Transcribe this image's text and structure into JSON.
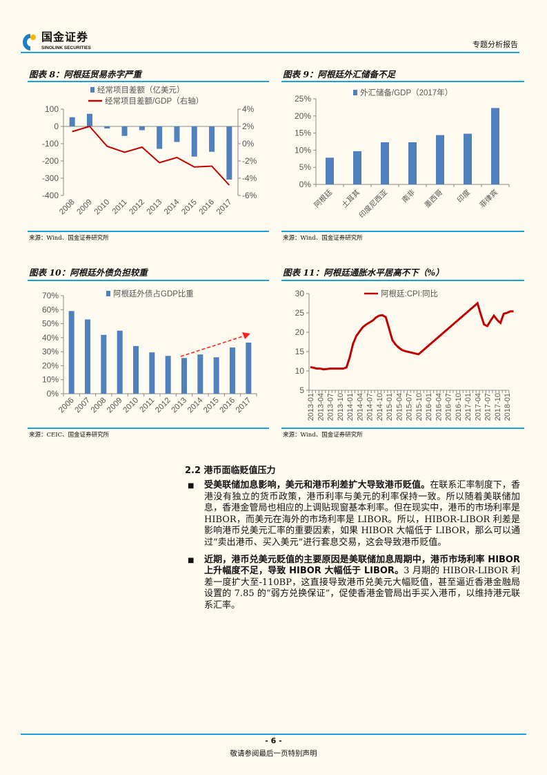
{
  "header": {
    "logo_cn": "国金证券",
    "logo_en": "SINOLINK SECURITIES",
    "report_type": "专题分析报告",
    "accent": "#1aa0dc"
  },
  "figures": [
    {
      "title": "图表 8：阿根廷贸易赤字严重",
      "source": "来源：Wind、国金证券研究所"
    },
    {
      "title": "图表 9：阿根廷外汇储备不足",
      "source": "来源：Wind、国金证券研究所"
    },
    {
      "title": "图表 10：阿根廷外债负担较重",
      "source": "来源：CEIC、国金证券研究所"
    },
    {
      "title": "图表 11：阿根廷通胀水平居高不下（%）",
      "source": "来源：Wind、国金证券研究所"
    }
  ],
  "chart_data": [
    {
      "type": "bar+line",
      "categories": [
        "2008",
        "2009",
        "2010",
        "2011",
        "2012",
        "2013",
        "2014",
        "2015",
        "2016",
        "2017"
      ],
      "series": [
        {
          "name": "经常项目差额（亿美元）",
          "kind": "bar",
          "axis": "left",
          "color": "#4f81bd",
          "values": [
            53,
            73,
            -12,
            -55,
            -22,
            -130,
            -90,
            -175,
            -147,
            -308
          ]
        },
        {
          "name": "经常项目差额/GDP（右轴）",
          "kind": "line",
          "axis": "right",
          "color": "#c00000",
          "values": [
            1.4,
            2.0,
            -0.3,
            -1.0,
            -0.4,
            -2.2,
            -1.6,
            -2.7,
            -2.6,
            -4.8
          ]
        }
      ],
      "ylim": [
        -400,
        100
      ],
      "yticks": [
        "100",
        "0",
        "-100",
        "-200",
        "-300",
        "-400"
      ],
      "y2lim": [
        -6,
        4
      ],
      "y2ticks": [
        "4%",
        "2%",
        "0%",
        "-2%",
        "-4%",
        "-6%"
      ],
      "legend": "top"
    },
    {
      "type": "bar",
      "categories": [
        "阿根廷",
        "土耳其",
        "印度尼西亚",
        "南非",
        "墨西哥",
        "印度",
        "菲律宾"
      ],
      "series": [
        {
          "name": "外汇储备/GDP（2017年）",
          "color": "#4f81bd",
          "values": [
            7.8,
            9.7,
            12.3,
            12.3,
            14.4,
            14.8,
            22.3
          ]
        }
      ],
      "ylim": [
        0,
        25
      ],
      "yticks": [
        "25%",
        "20%",
        "15%",
        "10%",
        "5%",
        "0%"
      ],
      "legend": "top"
    },
    {
      "type": "bar",
      "categories": [
        "2006",
        "2007",
        "2008",
        "2009",
        "2010",
        "2011",
        "2012",
        "2013",
        "2014",
        "2015",
        "2016",
        "2017"
      ],
      "series": [
        {
          "name": "阿根廷外债占GDP比重",
          "color": "#4f81bd",
          "values": [
            59,
            53,
            42,
            45,
            34,
            29.5,
            27,
            25.5,
            28,
            26,
            33,
            36.5
          ]
        }
      ],
      "ylim": [
        0,
        70
      ],
      "yticks": [
        "70%",
        "60%",
        "50%",
        "40%",
        "30%",
        "20%",
        "10%",
        "0%"
      ],
      "annotation": "rising trend arrow 2013→2017",
      "legend": "top"
    },
    {
      "type": "line",
      "series": [
        {
          "name": "阿根廷:CPI:同比",
          "color": "#c00000",
          "points": [
            [
              "2013-01",
              11.0
            ],
            [
              "2013-02",
              10.8
            ],
            [
              "2013-03",
              10.6
            ],
            [
              "2013-04",
              10.6
            ],
            [
              "2013-05",
              10.4
            ],
            [
              "2013-06",
              10.5
            ],
            [
              "2013-07",
              10.6
            ],
            [
              "2013-08",
              10.6
            ],
            [
              "2013-09",
              10.6
            ],
            [
              "2013-10",
              10.6
            ],
            [
              "2013-11",
              10.6
            ],
            [
              "2013-12",
              10.9
            ],
            [
              "2014-01",
              13.5
            ],
            [
              "2014-02",
              17.0
            ],
            [
              "2014-03",
              19.0
            ],
            [
              "2014-04",
              20.2
            ],
            [
              "2014-05",
              21.3
            ],
            [
              "2014-06",
              22.0
            ],
            [
              "2014-07",
              22.5
            ],
            [
              "2014-08",
              23.0
            ],
            [
              "2014-09",
              23.8
            ],
            [
              "2014-10",
              24.3
            ],
            [
              "2014-11",
              24.4
            ],
            [
              "2014-12",
              23.9
            ],
            [
              "2015-01",
              21.0
            ],
            [
              "2015-02",
              18.0
            ],
            [
              "2015-03",
              16.8
            ],
            [
              "2015-04",
              16.0
            ],
            [
              "2015-05",
              15.4
            ],
            [
              "2015-06",
              15.1
            ],
            [
              "2015-07",
              14.9
            ],
            [
              "2015-08",
              14.7
            ],
            [
              "2015-09",
              14.5
            ],
            [
              "2015-10",
              14.3
            ],
            [
              "2017-04",
              27.5
            ],
            [
              "2017-05",
              24.6
            ],
            [
              "2017-06",
              22.0
            ],
            [
              "2017-07",
              21.6
            ],
            [
              "2017-08",
              23.0
            ],
            [
              "2017-09",
              24.3
            ],
            [
              "2017-10",
              23.2
            ],
            [
              "2017-11",
              22.4
            ],
            [
              "2017-12",
              24.8
            ],
            [
              "2018-01",
              25.0
            ],
            [
              "2018-02",
              25.4
            ],
            [
              "2018-03",
              25.4
            ]
          ]
        }
      ],
      "ylim": [
        5,
        30
      ],
      "yticks": [
        "30",
        "25",
        "20",
        "15",
        "10",
        "5"
      ],
      "xticks": [
        "2013-01",
        "2013-04",
        "2013-07",
        "2013-10",
        "2014-01",
        "2014-04",
        "2014-07",
        "2014-10",
        "2015-01",
        "2015-04",
        "2015-07",
        "2015-10",
        "2016-01",
        "2016-04",
        "2016-07",
        "2016-10",
        "2017-01",
        "2017-04",
        "2017-07",
        "2017-10",
        "2018-01"
      ],
      "legend": "top"
    }
  ],
  "section": {
    "title": "2.2 港币面临贬值压力",
    "bullets": [
      {
        "bold": "受美联储加息影响，美元和港币利差扩大导致港币贬值。",
        "text": "在联系汇率制度下，香港没有独立的货币政策，港币利率与美元的利率保持一致。所以随着美联储加息，香港金管局也相应的上调贴现窗基本利率。但在现实中，港币的市场利率是 HIBOR，而美元在海外的市场利率是 LIBOR。所以，HIBOR-LIBOR 利差是影响港币兑美元汇率的重要因素，如果 HIBOR 大幅低于 LIBOR，那么可以通过“卖出港币、买入美元”进行套息交易，这会导致港币贬值。"
      },
      {
        "bold": "近期，港币兑美元贬值的主要原因是美联储加息周期中，港币市场利率 HIBOR 上升幅度不足，导致 HIBOR 大幅低于 LIBOR。",
        "text": "3 月期的 HIBOR-LIBOR 利差一度扩大至-110BP，这直接导致港币兑美元大幅贬值，甚至逼近香港金融局设置的 7.85 的“弱方兑换保证”，促使香港金管局出手买入港币，以维持港元联系汇率。"
      }
    ]
  },
  "footer": {
    "page": "- 6 -",
    "disclaimer": "敬请参阅最后一页特别声明"
  }
}
